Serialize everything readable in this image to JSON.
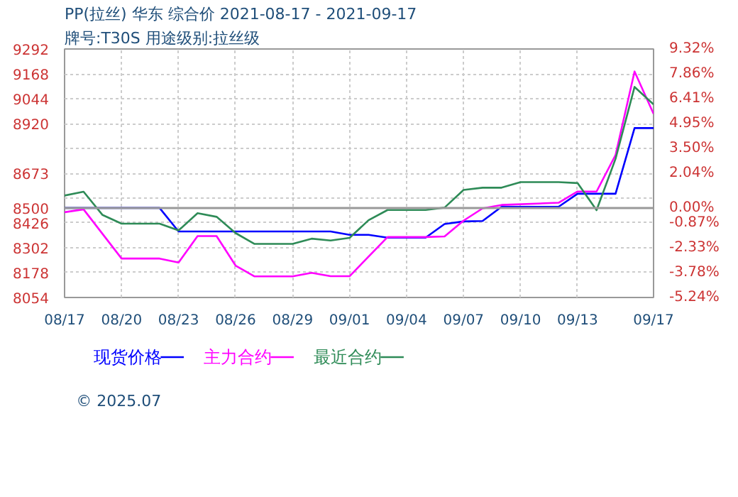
{
  "chart_data": {
    "type": "line",
    "title": "PP(拉丝) 华东 综合价 2021-08-17 - 2021-09-17",
    "subtitle": "牌号:T30S 用途级别:拉丝级",
    "annotations": [
      "© 2025.07"
    ],
    "xlim": [
      "2021-08-17",
      "2021-09-17"
    ],
    "xticks": [
      {
        "value": "2021-08-17",
        "label": "08/17"
      },
      {
        "value": "2021-08-20",
        "label": "08/20"
      },
      {
        "value": "2021-08-23",
        "label": "08/23"
      },
      {
        "value": "2021-08-26",
        "label": "08/26"
      },
      {
        "value": "2021-08-29",
        "label": "08/29"
      },
      {
        "value": "2021-09-01",
        "label": "09/01"
      },
      {
        "value": "2021-09-04",
        "label": "09/04"
      },
      {
        "value": "2021-09-07",
        "label": "09/07"
      },
      {
        "value": "2021-09-10",
        "label": "09/10"
      },
      {
        "value": "2021-09-13",
        "label": "09/13"
      },
      {
        "value": "2021-09-17",
        "label": "09/17"
      }
    ],
    "ylim": [
      8054,
      9292
    ],
    "yticks": [
      9292,
      9168,
      9044,
      8920,
      {
        "value": 8797,
        "label": null
      },
      8673,
      8500,
      {
        "value": 8549,
        "label": null
      },
      8426,
      8302,
      8178,
      8054
    ],
    "y2lim": [
      -5.24,
      9.32
    ],
    "y2ticks": [
      {
        "value": 9.32,
        "label": "9.32%"
      },
      {
        "value": 7.86,
        "label": "7.86%"
      },
      {
        "value": 6.41,
        "label": "6.41%"
      },
      {
        "value": 4.95,
        "label": "4.95%"
      },
      {
        "value": 3.5,
        "label": "3.50%"
      },
      {
        "value": 2.04,
        "label": "2.04%"
      },
      {
        "value": 0,
        "label": "0.00%"
      },
      {
        "value": -0.87,
        "label": "-0.87%"
      },
      {
        "value": -2.33,
        "label": "-2.33%"
      },
      {
        "value": -3.78,
        "label": "-3.78%"
      },
      {
        "value": -5.24,
        "label": "-5.24%"
      }
    ],
    "ref_lines": [
      {
        "axis": "y",
        "value": 8500,
        "color": "#999999"
      }
    ],
    "grid": true,
    "legend": "bottom",
    "line_style": "solid",
    "marker": "none",
    "series": [
      {
        "name": "现货价格",
        "color": "#0000ff",
        "x": [
          "2021-08-17",
          "2021-08-22",
          "2021-08-23",
          "2021-08-31",
          "2021-09-01",
          "2021-09-02",
          "2021-09-03",
          "2021-09-05",
          "2021-09-06",
          "2021-09-07",
          "2021-09-08",
          "2021-09-09",
          "2021-09-12",
          "2021-09-13",
          "2021-09-15",
          "2021-09-16",
          "2021-09-17"
        ],
        "values": [
          8500,
          8500,
          8383,
          8383,
          8366,
          8366,
          8352,
          8352,
          8420,
          8433,
          8435,
          8506,
          8506,
          8571,
          8571,
          8898,
          8898
        ]
      },
      {
        "name": "主力合约",
        "color": "#ff00ff",
        "x": [
          "2021-08-17",
          "2021-08-18",
          "2021-08-20",
          "2021-08-22",
          "2021-08-23",
          "2021-08-24",
          "2021-08-25",
          "2021-08-26",
          "2021-08-27",
          "2021-08-29",
          "2021-08-30",
          "2021-08-31",
          "2021-09-01",
          "2021-09-03",
          "2021-09-05",
          "2021-09-06",
          "2021-09-07",
          "2021-09-08",
          "2021-09-09",
          "2021-09-12",
          "2021-09-13",
          "2021-09-14",
          "2021-09-15",
          "2021-09-16",
          "2021-09-17"
        ],
        "values": [
          8479,
          8493,
          8248,
          8248,
          8228,
          8360,
          8360,
          8213,
          8159,
          8159,
          8177,
          8160,
          8160,
          8355,
          8355,
          8358,
          8437,
          8498,
          8515,
          8526,
          8582,
          8582,
          8764,
          9180,
          8969
        ]
      },
      {
        "name": "最近合约",
        "color": "#2e8b57",
        "x": [
          "2021-08-17",
          "2021-08-18",
          "2021-08-19",
          "2021-08-20",
          "2021-08-22",
          "2021-08-23",
          "2021-08-24",
          "2021-08-25",
          "2021-08-26",
          "2021-08-27",
          "2021-08-29",
          "2021-08-30",
          "2021-08-31",
          "2021-09-01",
          "2021-09-02",
          "2021-09-03",
          "2021-09-05",
          "2021-09-06",
          "2021-09-07",
          "2021-09-08",
          "2021-09-09",
          "2021-09-10",
          "2021-09-12",
          "2021-09-13",
          "2021-09-14",
          "2021-09-15",
          "2021-09-16",
          "2021-09-17"
        ],
        "values": [
          8562,
          8581,
          8465,
          8422,
          8422,
          8388,
          8474,
          8456,
          8375,
          8321,
          8321,
          8347,
          8338,
          8351,
          8439,
          8490,
          8490,
          8502,
          8590,
          8601,
          8601,
          8629,
          8629,
          8624,
          8489,
          8745,
          9103,
          9016
        ]
      }
    ]
  }
}
